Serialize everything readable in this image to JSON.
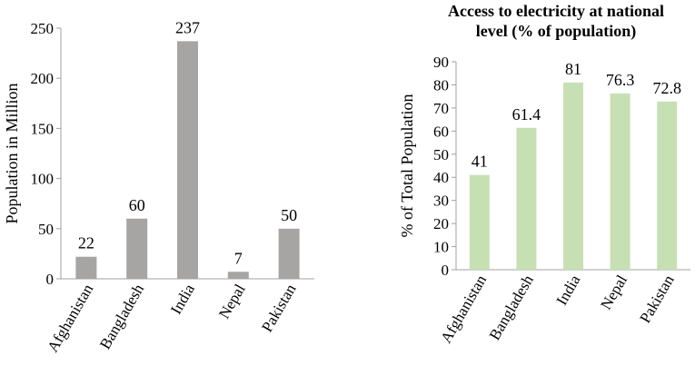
{
  "chart_data": [
    {
      "type": "bar",
      "title": "",
      "xlabel": "",
      "ylabel": "Population in Million",
      "categories": [
        "Afghanistan",
        "Bangladesh",
        "India",
        "Nepal",
        "Pakistan"
      ],
      "values": [
        22,
        60,
        237,
        7,
        50
      ],
      "data_labels": [
        "22",
        "60",
        "237",
        "7",
        "50"
      ],
      "ylim": [
        0,
        250
      ],
      "yticks": [
        "0",
        "50",
        "100",
        "150",
        "200",
        "250"
      ],
      "grid": false,
      "bar_color": "#a7a4a4"
    },
    {
      "type": "bar",
      "title_lines": [
        "Access to electricity at national",
        "level (% of population)"
      ],
      "xlabel": "",
      "ylabel": "% of Total Population",
      "categories": [
        "Afghanistan",
        "Bangladesh",
        "India",
        "Nepal",
        "Pakistan"
      ],
      "values": [
        41,
        61.4,
        81,
        76.3,
        72.8
      ],
      "data_labels": [
        "41",
        "61.4",
        "81",
        "76.3",
        "72.8"
      ],
      "ylim": [
        0,
        90
      ],
      "yticks": [
        "0",
        "10",
        "20",
        "30",
        "40",
        "50",
        "60",
        "70",
        "80",
        "90"
      ],
      "grid": false,
      "bar_color": "#c6e0b4"
    }
  ]
}
